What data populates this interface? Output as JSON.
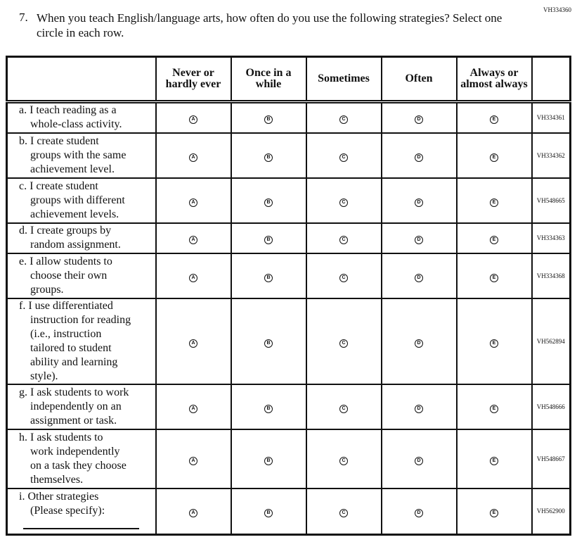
{
  "question_id": "VH334360",
  "question_number": "7.",
  "question_text": "When you teach English/language arts, how often do you use the following strategies? Select one circle in each row.",
  "columns": [
    "Never or hardly ever",
    "Once in a while",
    "Sometimes",
    "Often",
    "Always or almost always"
  ],
  "bubble_letters": [
    "A",
    "B",
    "C",
    "D",
    "E"
  ],
  "rows": [
    {
      "lines": [
        "a. I teach reading as a",
        "whole-class activity."
      ],
      "code": "VH334361"
    },
    {
      "lines": [
        "b. I create student",
        "groups with the same",
        "achievement level."
      ],
      "code": "VH334362"
    },
    {
      "lines": [
        "c. I create student",
        "groups with different",
        "achievement levels."
      ],
      "code": "VH548665"
    },
    {
      "lines": [
        "d. I create groups by",
        "random assignment."
      ],
      "code": "VH334363"
    },
    {
      "lines": [
        "e. I allow students to",
        "choose their own",
        "groups."
      ],
      "code": "VH334368"
    },
    {
      "lines": [
        "f. I use differentiated",
        "instruction for reading",
        "(i.e., instruction",
        "tailored to student",
        "ability and learning",
        "style)."
      ],
      "code": "VH562894"
    },
    {
      "lines": [
        "g. I ask students to work",
        "independently on an",
        "assignment or task."
      ],
      "code": "VH548666"
    },
    {
      "lines": [
        "h. I ask students to",
        "work independently",
        "on a task they choose",
        "themselves."
      ],
      "code": "VH548667"
    },
    {
      "lines": [
        "i. Other strategies",
        "(Please specify):"
      ],
      "code": "VH562900",
      "specify": true
    }
  ]
}
